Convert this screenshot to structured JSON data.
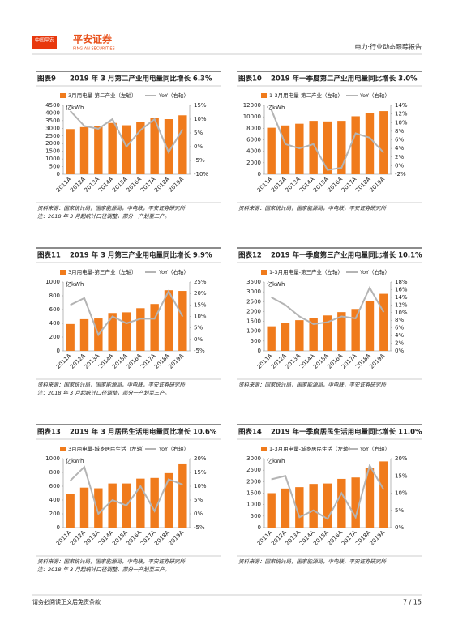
{
  "header": {
    "logo": "中国平安",
    "brand": "平安证券",
    "brand_en": "PING AN SECURITIES",
    "report": "电力·行业动态跟踪报告"
  },
  "footer": {
    "disclaimer": "请务必阅读正文后免责条款",
    "page": "7 / 15"
  },
  "chart_data": [
    {
      "type": "bar",
      "label": "图表9",
      "title": "2019 年 3 月第二产业用电量同比增长 6.3%",
      "unit": "亿kWh",
      "categories": [
        "2011A",
        "2012A",
        "2013A",
        "2014A",
        "2015A",
        "2016A",
        "2017A",
        "2018A",
        "2019A"
      ],
      "series": [
        {
          "name": "3月用电量-第二产业（左轴）",
          "type": "bar",
          "color": "#f07b1c",
          "values": [
            2950,
            3080,
            3150,
            3350,
            3200,
            3400,
            3700,
            3600,
            3850
          ]
        },
        {
          "name": "YoY（右轴）",
          "type": "line",
          "axis": "y2",
          "color": "#b4b4b4",
          "values": [
            13,
            7.5,
            6.5,
            10,
            0,
            6,
            10,
            -2,
            6.3
          ]
        }
      ],
      "ylim": [
        0,
        4500
      ],
      "yticks": [
        0,
        500,
        1000,
        1500,
        2000,
        2500,
        3000,
        3500,
        4000,
        4500
      ],
      "y2lim": [
        -10,
        15
      ],
      "y2ticks": [
        {
          "value": -10,
          "label": "-10%"
        },
        {
          "value": -5,
          "label": "-5%"
        },
        {
          "value": 0,
          "label": "0%"
        },
        {
          "value": 5,
          "label": "5%"
        },
        {
          "value": 10,
          "label": "10%"
        },
        {
          "value": 15,
          "label": "15%"
        }
      ],
      "source": "资料来源：国家统计局，国家能源局，中电联，平安证券研究所",
      "note": "注：2018 年 3 月起统计口径调整，部分一产划至三产。"
    },
    {
      "type": "bar",
      "label": "图表10",
      "title": "2019 年一季度第二产业用电量同比增长 3.0%",
      "unit": "亿kWh",
      "categories": [
        "2011A",
        "2012A",
        "2013A",
        "2014A",
        "2015A",
        "2016A",
        "2017A",
        "2018A",
        "2019A"
      ],
      "series": [
        {
          "name": "1-3月用电量-第二产业（左轴）",
          "type": "bar",
          "color": "#f07b1c",
          "values": [
            8100,
            8500,
            8800,
            9300,
            9200,
            9300,
            10100,
            10700,
            11000
          ]
        },
        {
          "name": "YoY（右轴）",
          "type": "line",
          "axis": "y2",
          "color": "#b4b4b4",
          "values": [
            13,
            5,
            4,
            5,
            -1,
            -0.5,
            7.5,
            6.5,
            3.0
          ]
        }
      ],
      "ylim": [
        0,
        12000
      ],
      "yticks": [
        0,
        2000,
        4000,
        6000,
        8000,
        10000,
        12000
      ],
      "y2lim": [
        -2,
        14
      ],
      "y2ticks": [
        {
          "value": -2,
          "label": "-2%"
        },
        {
          "value": 0,
          "label": "0%"
        },
        {
          "value": 2,
          "label": "2%"
        },
        {
          "value": 4,
          "label": "4%"
        },
        {
          "value": 6,
          "label": "6%"
        },
        {
          "value": 8,
          "label": "8%"
        },
        {
          "value": 10,
          "label": "10%"
        },
        {
          "value": 12,
          "label": "12%"
        },
        {
          "value": 14,
          "label": "14%"
        }
      ],
      "source": "资料来源：国家统计局，国家能源局，中电联，平安证券研究所"
    },
    {
      "type": "bar",
      "label": "图表11",
      "title": "2019 年 3 月第三产业用电量同比增长 9.9%",
      "unit": "亿kWh",
      "categories": [
        "2011A",
        "2012A",
        "2013A",
        "2014A",
        "2015A",
        "2016A",
        "2017A",
        "2018A",
        "2019A"
      ],
      "series": [
        {
          "name": "3月用电量-第三产业（左轴）",
          "type": "bar",
          "color": "#f07b1c",
          "values": [
            390,
            460,
            470,
            550,
            560,
            620,
            680,
            880,
            870
          ]
        },
        {
          "name": "YoY（右轴）",
          "type": "line",
          "axis": "y2",
          "color": "#b4b4b4",
          "values": [
            15,
            18,
            2,
            10,
            7,
            9,
            9,
            21,
            9.9
          ]
        }
      ],
      "ylim": [
        0,
        1000
      ],
      "yticks": [
        0,
        200,
        400,
        600,
        800,
        1000
      ],
      "y2lim": [
        -5,
        25
      ],
      "y2ticks": [
        {
          "value": -5,
          "label": "-5%"
        },
        {
          "value": 0,
          "label": "0%"
        },
        {
          "value": 5,
          "label": "5%"
        },
        {
          "value": 10,
          "label": "10%"
        },
        {
          "value": 15,
          "label": "15%"
        },
        {
          "value": 20,
          "label": "20%"
        },
        {
          "value": 25,
          "label": "25%"
        }
      ],
      "source": "资料来源：国家统计局，国家能源局，中电联，平安证券研究所",
      "note": "注：2018 年 3 月起统计口径调整，部分一产划至三产。"
    },
    {
      "type": "bar",
      "label": "图表12",
      "title": "2019 年一季度第三产业用电量同比增长 10.1%",
      "unit": "亿kWh",
      "categories": [
        "2011A",
        "2012A",
        "2013A",
        "2014A",
        "2015A",
        "2016A",
        "2017A",
        "2018A",
        "2019A"
      ],
      "series": [
        {
          "name": "1-3月用电量-第三产业（左轴）",
          "type": "bar",
          "color": "#f07b1c",
          "values": [
            1250,
            1420,
            1560,
            1680,
            1800,
            1970,
            2130,
            2520,
            2900
          ]
        },
        {
          "name": "YoY（右轴）",
          "type": "line",
          "axis": "y2",
          "color": "#b4b4b4",
          "values": [
            14,
            12,
            9,
            7,
            7.5,
            9,
            8.5,
            16.5,
            10.1
          ]
        }
      ],
      "ylim": [
        0,
        3500
      ],
      "yticks": [
        0,
        500,
        1000,
        1500,
        2000,
        2500,
        3000,
        3500
      ],
      "y2lim": [
        0,
        18
      ],
      "y2ticks": [
        {
          "value": 0,
          "label": "0%"
        },
        {
          "value": 2,
          "label": "2%"
        },
        {
          "value": 4,
          "label": "4%"
        },
        {
          "value": 6,
          "label": "6%"
        },
        {
          "value": 8,
          "label": "8%"
        },
        {
          "value": 10,
          "label": "10%"
        },
        {
          "value": 12,
          "label": "12%"
        },
        {
          "value": 14,
          "label": "14%"
        },
        {
          "value": 16,
          "label": "16%"
        },
        {
          "value": 18,
          "label": "18%"
        }
      ],
      "source": "资料来源：国家统计局，国家能源局，中电联，平安证券研究所"
    },
    {
      "type": "bar",
      "label": "图表13",
      "title": "2019 年 3 月居民生活用电量同比增长 10.6%",
      "unit": "亿kWh",
      "categories": [
        "2011A",
        "2012A",
        "2013A",
        "2014A",
        "2015A",
        "2016A",
        "2017A",
        "2018A",
        "2019A"
      ],
      "series": [
        {
          "name": "3月用电量-城乡居民生活（左轴）",
          "type": "bar",
          "color": "#f07b1c",
          "values": [
            490,
            580,
            570,
            640,
            640,
            710,
            720,
            790,
            930
          ]
        },
        {
          "name": "YoY（右轴）",
          "type": "line",
          "axis": "y2",
          "color": "#b4b4b4",
          "values": [
            12,
            17,
            0,
            5,
            3,
            10,
            1,
            12.5,
            10.6
          ]
        }
      ],
      "ylim": [
        0,
        1000
      ],
      "yticks": [
        0,
        200,
        400,
        600,
        800,
        1000
      ],
      "y2lim": [
        -5,
        20
      ],
      "y2ticks": [
        {
          "value": -5,
          "label": "-5%"
        },
        {
          "value": 0,
          "label": "0%"
        },
        {
          "value": 5,
          "label": "5%"
        },
        {
          "value": 10,
          "label": "10%"
        },
        {
          "value": 15,
          "label": "15%"
        },
        {
          "value": 20,
          "label": "20%"
        }
      ],
      "source": "资料来源：国家统计局，国家能源局，中电联，平安证券研究所",
      "note": "注：2018 年 3 月起统计口径调整，部分一产划至三产。"
    },
    {
      "type": "bar",
      "label": "图表14",
      "title": "2019 年一季度居民生活用电量同比增长 11.0%",
      "unit": "亿kWh",
      "categories": [
        "2011A",
        "2012A",
        "2013A",
        "2014A",
        "2015A",
        "2016A",
        "2017A",
        "2018A",
        "2019A"
      ],
      "series": [
        {
          "name": "1-3月用电量-城乡居民生活（左轴）",
          "type": "bar",
          "color": "#f07b1c",
          "values": [
            1500,
            1700,
            1760,
            1900,
            1920,
            2120,
            2180,
            2600,
            2880
          ]
        },
        {
          "name": "YoY（右轴）",
          "type": "line",
          "axis": "y2",
          "color": "#b4b4b4",
          "values": [
            14,
            15,
            3,
            5,
            2.5,
            10,
            3,
            18,
            11
          ]
        }
      ],
      "ylim": [
        0,
        3000
      ],
      "yticks": [
        0,
        500,
        1000,
        1500,
        2000,
        2500,
        3000
      ],
      "y2lim": [
        0,
        20
      ],
      "y2ticks": [
        {
          "value": 0,
          "label": "0%"
        },
        {
          "value": 5,
          "label": "5%"
        },
        {
          "value": 10,
          "label": "10%"
        },
        {
          "value": 15,
          "label": "15%"
        },
        {
          "value": 20,
          "label": "20%"
        }
      ],
      "source": "资料来源：国家统计局，国家能源局，中电联，平安证券研究所"
    }
  ]
}
